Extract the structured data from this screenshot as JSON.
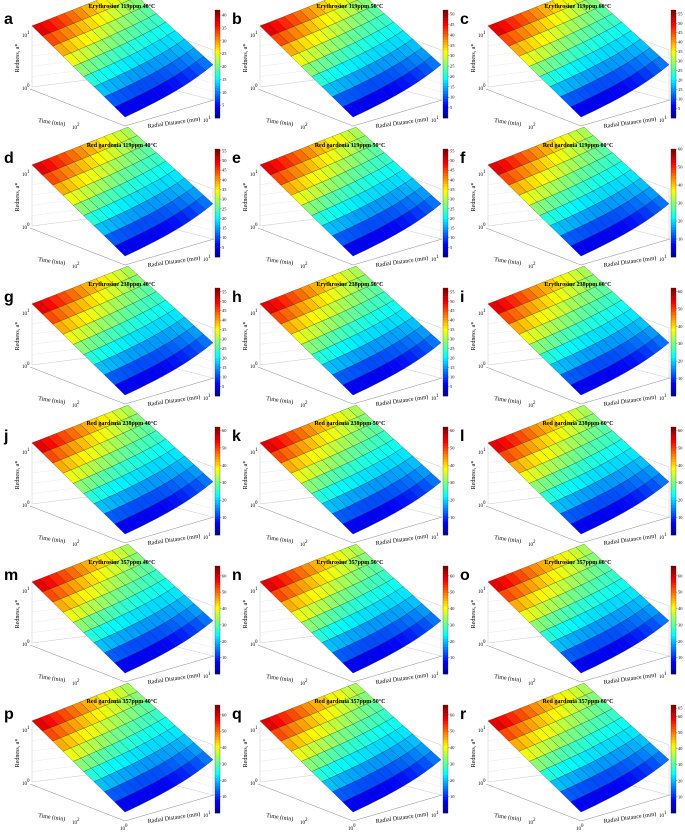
{
  "labels": {
    "xlabel": "Radial Distance (mm)",
    "ylabel": "Time (min)",
    "zlabel": "Redness, a*",
    "tick_z_base": "10",
    "tick_z_exp": "0",
    "tick_z_exp2": "1",
    "tick_t_base": "10",
    "tick_t_exp": "2",
    "tick_r_base": "10",
    "tick_r_exp0": "0",
    "tick_r_exp1": "1"
  },
  "chart_data": [
    {
      "letter": "a",
      "title": "Erythrosine 119ppm 40°C",
      "type": "surface",
      "colorbar": {
        "min": 0,
        "max": 42,
        "ticks": [
          5,
          10,
          15,
          20,
          25,
          30,
          35,
          40
        ]
      }
    },
    {
      "letter": "b",
      "title": "Erythrosine 119ppm 50°C",
      "type": "surface",
      "colorbar": {
        "min": 0,
        "max": 52,
        "ticks": [
          5,
          10,
          15,
          20,
          25,
          30,
          35,
          40,
          45,
          50
        ]
      }
    },
    {
      "letter": "c",
      "title": "Erythrosine 119ppm 60°C",
      "type": "surface",
      "colorbar": {
        "min": 0,
        "max": 57,
        "ticks": [
          5,
          10,
          15,
          20,
          25,
          30,
          35,
          40,
          45,
          50,
          55
        ]
      }
    },
    {
      "letter": "d",
      "title": "Red gardenia 119ppm 40°C",
      "type": "surface",
      "colorbar": {
        "min": 0,
        "max": 56,
        "ticks": [
          5,
          10,
          15,
          20,
          25,
          30,
          35,
          40,
          45,
          50,
          55
        ]
      }
    },
    {
      "letter": "e",
      "title": "Red gardenia 119ppm 50°C",
      "type": "surface",
      "colorbar": {
        "min": 0,
        "max": 56,
        "ticks": [
          5,
          10,
          15,
          20,
          25,
          30,
          35,
          40,
          45,
          50,
          55
        ]
      }
    },
    {
      "letter": "f",
      "title": "Red gardenia 119ppm 60°C",
      "type": "surface",
      "colorbar": {
        "min": 0,
        "max": 60,
        "ticks": [
          10,
          20,
          30,
          40,
          50,
          60
        ]
      }
    },
    {
      "letter": "g",
      "title": "Erythrosine 238ppm 40°C",
      "type": "surface",
      "colorbar": {
        "min": 0,
        "max": 57,
        "ticks": [
          5,
          10,
          15,
          20,
          25,
          30,
          35,
          40,
          45,
          50,
          55
        ]
      }
    },
    {
      "letter": "h",
      "title": "Erythrosine 238ppm 50°C",
      "type": "surface",
      "colorbar": {
        "min": 0,
        "max": 57,
        "ticks": [
          5,
          10,
          15,
          20,
          25,
          30,
          35,
          40,
          45,
          50,
          55
        ]
      }
    },
    {
      "letter": "i",
      "title": "Erythrosine 238ppm 60°C",
      "type": "surface",
      "colorbar": {
        "min": 0,
        "max": 62,
        "ticks": [
          10,
          20,
          30,
          40,
          50,
          60
        ]
      }
    },
    {
      "letter": "j",
      "title": "Red gardenia 238ppm 40°C",
      "type": "surface",
      "colorbar": {
        "min": 0,
        "max": 62,
        "ticks": [
          10,
          20,
          30,
          40,
          50,
          60
        ]
      }
    },
    {
      "letter": "k",
      "title": "Red gardenia 238ppm 50°C",
      "type": "surface",
      "colorbar": {
        "min": 0,
        "max": 62,
        "ticks": [
          10,
          20,
          30,
          40,
          50,
          60
        ]
      }
    },
    {
      "letter": "l",
      "title": "Red gardenia 238ppm 60°C",
      "type": "surface",
      "colorbar": {
        "min": 0,
        "max": 62,
        "ticks": [
          10,
          20,
          30,
          40,
          50,
          60
        ]
      }
    },
    {
      "letter": "m",
      "title": "Erythrosine 357ppm 40°C",
      "type": "surface",
      "colorbar": {
        "min": 0,
        "max": 66,
        "ticks": [
          10,
          20,
          30,
          40,
          50,
          60
        ]
      }
    },
    {
      "letter": "n",
      "title": "Erythrosine 357ppm 50°C",
      "type": "surface",
      "colorbar": {
        "min": 0,
        "max": 66,
        "ticks": [
          10,
          20,
          30,
          40,
          50,
          60
        ]
      }
    },
    {
      "letter": "o",
      "title": "Erythrosine 357ppm 60°C",
      "type": "surface",
      "colorbar": {
        "min": 0,
        "max": 66,
        "ticks": [
          10,
          20,
          30,
          40,
          50,
          60
        ]
      }
    },
    {
      "letter": "p",
      "title": "Red gardenia 357ppm 40°C",
      "type": "surface",
      "colorbar": {
        "min": 0,
        "max": 66,
        "ticks": [
          10,
          20,
          30,
          40,
          50,
          60
        ]
      }
    },
    {
      "letter": "q",
      "title": "Red gardenia 357ppm 50°C",
      "type": "surface",
      "colorbar": {
        "min": 0,
        "max": 66,
        "ticks": [
          10,
          20,
          30,
          40,
          50,
          60
        ]
      }
    },
    {
      "letter": "r",
      "title": "Red gardenia 357ppm 60°C",
      "type": "surface",
      "colorbar": {
        "min": 0,
        "max": 67,
        "ticks": [
          10,
          20,
          30,
          40,
          50,
          60,
          65
        ]
      }
    }
  ]
}
